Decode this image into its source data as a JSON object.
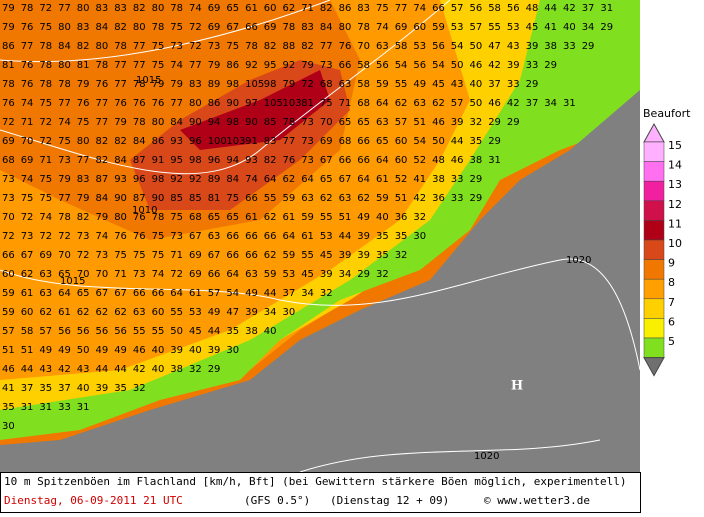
{
  "map": {
    "grid": {
      "rows": [
        [
          79,
          78,
          72,
          77,
          80,
          83,
          83,
          82,
          80,
          78,
          74,
          69,
          65,
          61,
          60,
          62,
          71,
          82,
          86,
          83,
          75,
          77,
          74,
          66,
          57,
          56,
          58,
          56,
          48,
          44,
          42,
          37,
          31
        ],
        [
          79,
          76,
          75,
          80,
          83,
          84,
          82,
          80,
          78,
          75,
          72,
          69,
          67,
          66,
          69,
          78,
          83,
          84,
          80,
          78,
          74,
          69,
          60,
          59,
          53,
          57,
          55,
          53,
          45,
          41,
          40,
          34,
          29
        ],
        [
          86,
          77,
          78,
          84,
          82,
          80,
          78,
          77,
          75,
          73,
          72,
          73,
          75,
          78,
          82,
          88,
          82,
          77,
          76,
          70,
          63,
          58,
          53,
          56,
          54,
          50,
          47,
          43,
          39,
          38,
          33,
          29
        ],
        [
          81,
          76,
          78,
          80,
          81,
          78,
          77,
          77,
          75,
          74,
          77,
          79,
          86,
          92,
          95,
          92,
          79,
          73,
          66,
          58,
          56,
          54,
          56,
          54,
          50,
          46,
          42,
          39,
          33,
          29
        ],
        [
          78,
          76,
          78,
          78,
          79,
          76,
          77,
          78,
          79,
          79,
          83,
          89,
          98,
          105,
          98,
          79,
          72,
          68,
          63,
          58,
          59,
          55,
          49,
          45,
          43,
          40,
          37,
          33,
          29
        ],
        [
          76,
          74,
          75,
          77,
          76,
          77,
          76,
          76,
          76,
          77,
          80,
          86,
          90,
          97,
          105,
          103,
          81,
          75,
          71,
          68,
          64,
          62,
          63,
          62,
          57,
          50,
          46,
          42,
          37,
          34,
          31
        ],
        [
          72,
          71,
          72,
          74,
          75,
          77,
          79,
          78,
          80,
          84,
          90,
          94,
          98,
          90,
          85,
          78,
          73,
          70,
          65,
          65,
          63,
          57,
          51,
          46,
          39,
          32,
          29,
          29
        ],
        [
          69,
          70,
          72,
          75,
          80,
          82,
          82,
          84,
          86,
          93,
          96,
          100,
          103,
          91,
          83,
          77,
          73,
          69,
          68,
          66,
          65,
          60,
          54,
          50,
          44,
          35,
          29
        ],
        [
          68,
          69,
          71,
          73,
          77,
          82,
          84,
          87,
          91,
          95,
          98,
          96,
          94,
          93,
          82,
          76,
          73,
          67,
          66,
          66,
          64,
          60,
          52,
          48,
          46,
          38,
          31
        ],
        [
          73,
          74,
          75,
          79,
          83,
          87,
          93,
          96,
          98,
          92,
          92,
          89,
          84,
          74,
          64,
          62,
          64,
          65,
          67,
          64,
          61,
          52,
          41,
          38,
          33,
          29
        ],
        [
          73,
          75,
          75,
          77,
          79,
          84,
          90,
          87,
          90,
          85,
          85,
          81,
          75,
          66,
          55,
          59,
          63,
          62,
          63,
          62,
          59,
          51,
          42,
          36,
          33,
          29
        ],
        [
          70,
          72,
          74,
          78,
          82,
          79,
          80,
          76,
          78,
          75,
          68,
          65,
          65,
          61,
          62,
          61,
          59,
          55,
          51,
          49,
          40,
          36,
          32
        ],
        [
          72,
          73,
          72,
          72,
          73,
          74,
          76,
          76,
          75,
          73,
          67,
          63,
          66,
          66,
          66,
          64,
          61,
          53,
          44,
          39,
          35,
          35,
          30
        ],
        [
          66,
          67,
          69,
          70,
          72,
          73,
          75,
          75,
          75,
          71,
          69,
          67,
          66,
          66,
          62,
          59,
          55,
          45,
          39,
          39,
          35,
          32
        ],
        [
          60,
          62,
          63,
          65,
          70,
          70,
          71,
          73,
          74,
          72,
          69,
          66,
          64,
          63,
          59,
          53,
          45,
          39,
          34,
          29,
          32
        ],
        [
          59,
          61,
          63,
          64,
          65,
          67,
          67,
          66,
          66,
          64,
          61,
          57,
          54,
          49,
          44,
          37,
          34,
          32
        ],
        [
          59,
          60,
          62,
          61,
          62,
          62,
          62,
          63,
          60,
          55,
          53,
          49,
          47,
          39,
          34,
          30
        ],
        [
          57,
          58,
          57,
          56,
          56,
          56,
          56,
          55,
          55,
          50,
          45,
          44,
          35,
          38,
          40
        ],
        [
          51,
          51,
          49,
          49,
          50,
          49,
          49,
          46,
          40,
          39,
          40,
          39,
          30
        ],
        [
          46,
          44,
          43,
          42,
          43,
          44,
          44,
          42,
          40,
          38,
          32,
          29
        ],
        [
          41,
          37,
          35,
          37,
          40,
          39,
          35,
          32
        ],
        [
          35,
          31,
          31,
          33,
          31
        ],
        [
          30
        ]
      ]
    },
    "isobars": [
      "1015",
      "1010",
      "1015",
      "1020",
      "1020"
    ],
    "high": "H",
    "legend": {
      "title": "Beaufort",
      "levels": [
        15,
        14,
        13,
        12,
        11,
        10,
        9,
        8,
        7,
        6,
        5
      ],
      "colors": [
        "#ffb0ff",
        "#ff70f0",
        "#f020a0",
        "#d0104a",
        "#b00018",
        "#d84818",
        "#f07800",
        "#ffa000",
        "#ffd000",
        "#f8f000",
        "#80e020"
      ]
    },
    "footer": {
      "line1": "10 m Spitzenböen im Flachland [km/h, Bft] (bei Gewittern stärkere Böen möglich, experimentell)",
      "date": "Dienstag, 06-09-2011  21 UTC",
      "model": "(GFS 0.5°)",
      "run": "(Dienstag 12 + 09)",
      "credit": "© www.wetter3.de"
    }
  }
}
